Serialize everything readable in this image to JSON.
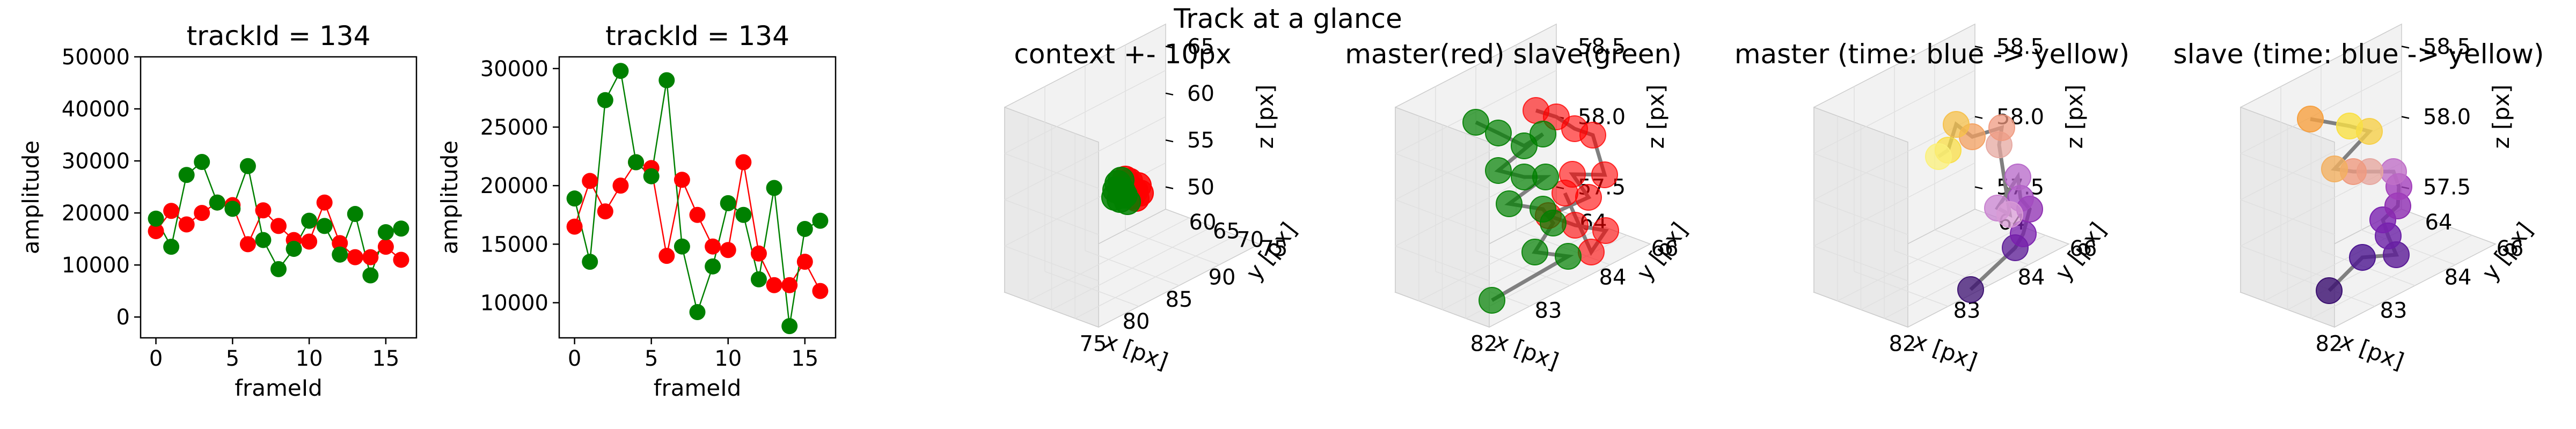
{
  "figure": {
    "suptitle": "Track at a glance"
  },
  "chart_data": [
    {
      "type": "line",
      "title": "trackId = 134",
      "xlabel": "frameId",
      "ylabel": "amplitude",
      "xlim": [
        -1,
        17
      ],
      "ylim": [
        -4000,
        50000
      ],
      "xticks": [
        "0",
        "5",
        "10",
        "15"
      ],
      "yticks": [
        "0",
        "10000",
        "20000",
        "30000",
        "40000",
        "50000"
      ],
      "x": [
        0,
        1,
        2,
        3,
        4,
        5,
        6,
        7,
        8,
        9,
        10,
        11,
        12,
        13,
        14,
        15,
        16
      ],
      "series": [
        {
          "color": "#ff0000",
          "values": [
            16500,
            20400,
            17800,
            20000,
            22000,
            21500,
            14000,
            20500,
            17500,
            14800,
            14500,
            22000,
            14200,
            11500,
            11500,
            13500,
            11000
          ]
        },
        {
          "color": "#008000",
          "values": [
            18900,
            13500,
            27300,
            29800,
            22000,
            20800,
            29000,
            14800,
            9200,
            13100,
            18500,
            17500,
            12000,
            19800,
            8000,
            16300,
            17000
          ]
        }
      ]
    },
    {
      "type": "line",
      "title": "trackId = 134",
      "xlabel": "frameId",
      "ylabel": "amplitude",
      "xlim": [
        -1,
        17
      ],
      "ylim": [
        7000,
        31000
      ],
      "xticks": [
        "0",
        "5",
        "10",
        "15"
      ],
      "yticks": [
        "10000",
        "15000",
        "20000",
        "25000",
        "30000"
      ],
      "x": [
        0,
        1,
        2,
        3,
        4,
        5,
        6,
        7,
        8,
        9,
        10,
        11,
        12,
        13,
        14,
        15,
        16
      ],
      "series": [
        {
          "color": "#ff0000",
          "values": [
            16500,
            20400,
            17800,
            20000,
            22000,
            21500,
            14000,
            20500,
            17500,
            14800,
            14500,
            22000,
            14200,
            11500,
            11500,
            13500,
            11000
          ]
        },
        {
          "color": "#008000",
          "values": [
            18900,
            13500,
            27300,
            29800,
            22000,
            20800,
            29000,
            14800,
            9200,
            13100,
            18500,
            17500,
            12000,
            19800,
            8000,
            16300,
            17000
          ]
        }
      ]
    },
    {
      "type": "scatter3d",
      "title": "context +- 10px",
      "xlabel": "x [px]",
      "ylabel": "y [px]",
      "zlabel": "z [px]",
      "xticks": [
        "75",
        "80",
        "85",
        "90"
      ],
      "yticks": [
        "60",
        "65",
        "70",
        "75"
      ],
      "zticks": [
        "50",
        "55",
        "60",
        "65"
      ]
    },
    {
      "type": "scatter3d",
      "title": "master(red) slave(green)",
      "xlabel": "x [px]",
      "ylabel": "y [px]",
      "zlabel": "z [px]",
      "xticks": [
        "82",
        "83",
        "84"
      ],
      "yticks": [
        "64",
        "66"
      ],
      "zticks": [
        "57.5",
        "58.0",
        "58.5"
      ]
    },
    {
      "type": "scatter3d",
      "title": "master (time: blue -> yellow)",
      "xlabel": "x [px]",
      "ylabel": "y [px]",
      "zlabel": "z [px]",
      "xticks": [
        "82",
        "83",
        "84"
      ],
      "yticks": [
        "64",
        "66"
      ],
      "zticks": [
        "57.5",
        "58.0",
        "58.5"
      ]
    },
    {
      "type": "scatter3d",
      "title": "slave (time: blue -> yellow)",
      "xlabel": "x [px]",
      "ylabel": "y [px]",
      "zlabel": "z [px]",
      "xticks": [
        "82",
        "83",
        "84"
      ],
      "yticks": [
        "64",
        "66"
      ],
      "zticks": [
        "57.5",
        "58.0",
        "58.5"
      ]
    }
  ]
}
